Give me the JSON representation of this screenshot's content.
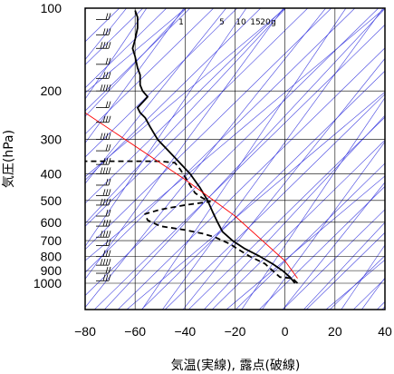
{
  "chart_data": {
    "type": "line",
    "xlabel": "気温(実線), 露点(破線)",
    "ylabel": "気圧(hPa)",
    "x_ticks": [
      -80,
      -60,
      -40,
      -20,
      0,
      20,
      40
    ],
    "y_ticks": [
      100,
      200,
      300,
      400,
      500,
      600,
      700,
      800,
      900,
      1000
    ],
    "xlim": [
      -80,
      40
    ],
    "ylim": [
      1050,
      100
    ],
    "y_scale": "log",
    "grid": true,
    "mixing_ratio_labels": [
      "1",
      "5",
      "10",
      "15",
      "20",
      "g"
    ],
    "series": [
      {
        "style": "solid",
        "color": "#000000",
        "points": [
          [
            4,
            1000
          ],
          [
            2,
            950
          ],
          [
            -1,
            900
          ],
          [
            -5,
            850
          ],
          [
            -10,
            800
          ],
          [
            -16,
            750
          ],
          [
            -21,
            700
          ],
          [
            -25,
            650
          ],
          [
            -27,
            600
          ],
          [
            -29,
            550
          ],
          [
            -31,
            500
          ],
          [
            -34,
            450
          ],
          [
            -38,
            400
          ],
          [
            -44,
            350
          ],
          [
            -51,
            300
          ],
          [
            -54,
            270
          ],
          [
            -56,
            250
          ],
          [
            -58,
            240
          ],
          [
            -59,
            230
          ],
          [
            -57,
            220
          ],
          [
            -55,
            210
          ],
          [
            -57,
            200
          ],
          [
            -58,
            190
          ],
          [
            -58,
            175
          ],
          [
            -59,
            165
          ],
          [
            -60,
            150
          ],
          [
            -61,
            140
          ],
          [
            -60,
            130
          ],
          [
            -59,
            118
          ],
          [
            -59,
            108
          ],
          [
            -60,
            102
          ]
        ]
      },
      {
        "style": "dashed",
        "color": "#000000",
        "points": [
          [
            5,
            1000
          ],
          [
            3,
            960
          ],
          [
            -2,
            950
          ],
          [
            -5,
            900
          ],
          [
            -8,
            850
          ],
          [
            -14,
            800
          ],
          [
            -18,
            760
          ],
          [
            -22,
            720
          ],
          [
            -28,
            680
          ],
          [
            -33,
            660
          ],
          [
            -40,
            640
          ],
          [
            -50,
            620
          ],
          [
            -55,
            590
          ],
          [
            -56,
            560
          ],
          [
            -50,
            540
          ],
          [
            -40,
            520
          ],
          [
            -30,
            505
          ],
          [
            -33,
            490
          ],
          [
            -36,
            470
          ],
          [
            -38,
            440
          ],
          [
            -40,
            410
          ],
          [
            -42,
            385
          ],
          [
            -44,
            365
          ],
          [
            -50,
            360
          ],
          [
            -80,
            360
          ]
        ]
      },
      {
        "style": "solid",
        "color": "#ff0000",
        "points": [
          [
            -80,
            240
          ],
          [
            -40,
            420
          ],
          [
            -20,
            570
          ],
          [
            0,
            830
          ],
          [
            5,
            960
          ]
        ]
      }
    ]
  }
}
